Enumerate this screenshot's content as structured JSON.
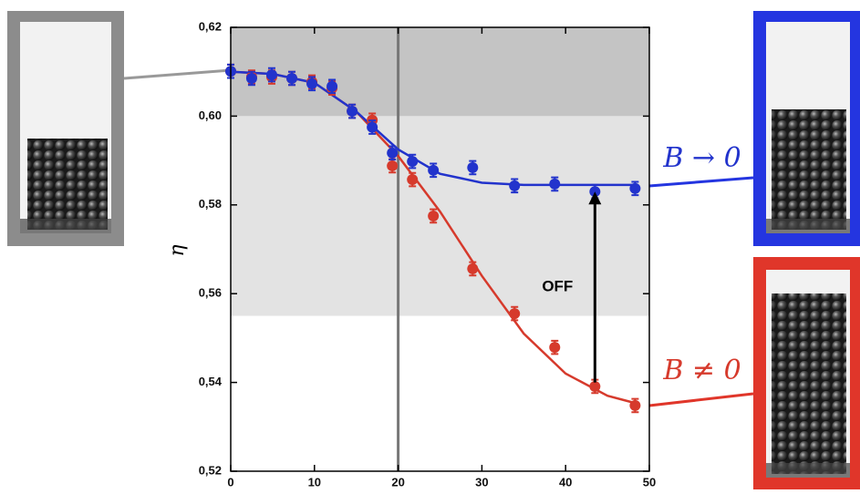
{
  "chart_data": {
    "type": "scatter",
    "y_label": "η",
    "xlim": [
      0,
      50
    ],
    "ylim": [
      0.52,
      0.62
    ],
    "xticks": [
      0,
      10,
      20,
      30,
      40,
      50
    ],
    "yticks": [
      {
        "value": 0.52,
        "label": "0,52"
      },
      {
        "value": 0.54,
        "label": "0,54"
      },
      {
        "value": 0.56,
        "label": "0,56"
      },
      {
        "value": 0.58,
        "label": "0,58"
      },
      {
        "value": 0.6,
        "label": "0,60"
      },
      {
        "value": 0.62,
        "label": "0,62"
      }
    ],
    "bands": [
      {
        "from": 0.6,
        "to": 0.62,
        "color": "#c4c4c4"
      },
      {
        "from": 0.555,
        "to": 0.6,
        "color": "#e3e3e3"
      }
    ],
    "vline": {
      "x": 20,
      "color": "#777777"
    },
    "series": [
      {
        "name": "B ≠ 0",
        "color": "#d63a2c",
        "x": [
          0,
          2.5,
          4.9,
          7.3,
          9.7,
          12.1,
          14.5,
          16.9,
          19.3,
          21.7,
          24.2,
          28.9,
          33.9,
          38.7,
          43.5,
          48.3
        ],
        "values": [
          0.6101,
          0.6088,
          0.6088,
          0.6085,
          0.6077,
          0.6063,
          0.6011,
          0.5991,
          0.5888,
          0.5857,
          0.5775,
          0.5656,
          0.5555,
          0.5479,
          0.5391,
          0.5348
        ],
        "errors": [
          0.0015,
          0.0015,
          0.0015,
          0.0015,
          0.0015,
          0.0015,
          0.0015,
          0.0015,
          0.0015,
          0.0015,
          0.0015,
          0.0015,
          0.0015,
          0.0015,
          0.0015,
          0.0015
        ]
      },
      {
        "name": "B → 0",
        "color": "#2233cc",
        "x": [
          0,
          2.5,
          4.9,
          7.3,
          9.7,
          12.1,
          14.5,
          16.9,
          19.3,
          21.7,
          24.2,
          28.9,
          33.9,
          38.7,
          43.5,
          48.3
        ],
        "values": [
          0.6101,
          0.6085,
          0.6093,
          0.6085,
          0.6073,
          0.6067,
          0.6011,
          0.5975,
          0.5917,
          0.5898,
          0.5878,
          0.5884,
          0.5843,
          0.5847,
          0.583,
          0.5837
        ],
        "errors": [
          0.0015,
          0.0015,
          0.0015,
          0.0015,
          0.0015,
          0.0015,
          0.0015,
          0.0015,
          0.0015,
          0.0015,
          0.0015,
          0.0015,
          0.0015,
          0.0015,
          0.0015,
          0.0015
        ]
      }
    ],
    "fits": [
      {
        "color": "#d63a2c",
        "x": [
          0,
          5,
          10,
          15,
          20,
          25,
          30,
          35,
          40,
          45,
          48
        ],
        "values": [
          0.61,
          0.6095,
          0.6075,
          0.601,
          0.591,
          0.5785,
          0.564,
          0.551,
          0.542,
          0.537,
          0.5355
        ]
      },
      {
        "color": "#2233cc",
        "x": [
          0,
          5,
          10,
          15,
          20,
          25,
          30,
          35,
          40,
          45,
          48
        ],
        "values": [
          0.61,
          0.6095,
          0.6075,
          0.601,
          0.5925,
          0.587,
          0.585,
          0.5845,
          0.5845,
          0.5845,
          0.5845
        ]
      }
    ],
    "annotation": {
      "text": "OFF",
      "x": 43.5,
      "from": 0.54,
      "to": 0.583
    }
  }
}
